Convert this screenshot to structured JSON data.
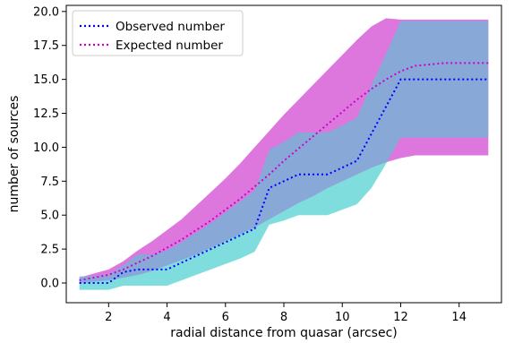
{
  "chart_data": {
    "type": "line",
    "xlabel": "radial distance from quasar (arcsec)",
    "ylabel": "number of sources",
    "xlim": [
      0.55,
      15.45
    ],
    "ylim": [
      -1.45,
      20.45
    ],
    "xticks": [
      2,
      4,
      6,
      8,
      10,
      12,
      14
    ],
    "yticks": [
      0.0,
      2.5,
      5.0,
      7.5,
      10.0,
      12.5,
      15.0,
      17.5,
      20.0
    ],
    "ytick_labels": [
      "0.0",
      "2.5",
      "5.0",
      "7.5",
      "10.0",
      "12.5",
      "15.0",
      "17.5",
      "20.0"
    ],
    "grid": false,
    "legend_position": "top-left",
    "colors": {
      "observed_line": "#0000ff",
      "expected_line": "#cc00cc",
      "observed_band": "#7fdddd",
      "expected_band": "#dd77dd",
      "overlap_band": "#88a8d8"
    },
    "series": [
      {
        "name": "Observed number",
        "style": "dotted",
        "x": [
          1.0,
          1.5,
          2.0,
          2.5,
          3.0,
          3.5,
          4.0,
          4.5,
          5.0,
          5.5,
          6.0,
          6.5,
          7.0,
          7.5,
          8.0,
          8.5,
          9.0,
          9.5,
          10.0,
          10.5,
          11.0,
          11.5,
          12.0,
          12.5,
          13.0,
          13.5,
          14.0,
          14.5,
          15.0
        ],
        "y": [
          0,
          0,
          0,
          0.8,
          1.0,
          1.0,
          1.0,
          1.5,
          2.0,
          2.5,
          3.0,
          3.5,
          4.0,
          7.0,
          7.5,
          8.0,
          8.0,
          8.0,
          8.5,
          9.0,
          11.0,
          13.0,
          15.0,
          15.0,
          15.0,
          15.0,
          15.0,
          15.0,
          15.0
        ],
        "band_lower": [
          -0.5,
          -0.5,
          -0.5,
          -0.2,
          -0.2,
          -0.2,
          -0.2,
          0.2,
          0.6,
          1.0,
          1.4,
          1.8,
          2.3,
          4.3,
          4.6,
          5.0,
          5.0,
          5.0,
          5.4,
          5.8,
          7.0,
          8.8,
          10.7,
          10.7,
          10.7,
          10.7,
          10.7,
          10.7,
          10.7
        ],
        "band_upper": [
          0.5,
          0.5,
          0.6,
          1.3,
          2.1,
          2.1,
          2.4,
          3.0,
          3.7,
          4.4,
          5.2,
          6.0,
          6.8,
          9.8,
          10.4,
          11.1,
          11.1,
          11.1,
          11.6,
          12.2,
          14.6,
          16.9,
          19.3,
          19.3,
          19.3,
          19.3,
          19.3,
          19.3,
          19.3
        ]
      },
      {
        "name": "Expected number",
        "style": "dotted",
        "x": [
          1.0,
          1.5,
          2.0,
          2.5,
          3.0,
          3.5,
          4.0,
          4.5,
          5.0,
          5.5,
          6.0,
          6.5,
          7.0,
          7.5,
          8.0,
          8.5,
          9.0,
          9.5,
          10.0,
          10.5,
          11.0,
          11.5,
          12.0,
          12.5,
          13.0,
          13.5,
          14.0,
          14.5,
          15.0
        ],
        "y": [
          0.2,
          0.4,
          0.6,
          1.0,
          1.5,
          2.0,
          2.6,
          3.2,
          3.9,
          4.6,
          5.4,
          6.2,
          7.1,
          8.0,
          9.0,
          9.9,
          10.8,
          11.7,
          12.6,
          13.5,
          14.3,
          15.0,
          15.6,
          16.0,
          16.1,
          16.2,
          16.2,
          16.2,
          16.2
        ],
        "band_lower": [
          0.0,
          0.1,
          0.2,
          0.4,
          0.6,
          0.9,
          1.3,
          1.7,
          2.1,
          2.6,
          3.1,
          3.6,
          4.1,
          4.7,
          5.3,
          5.9,
          6.4,
          7.0,
          7.5,
          8.0,
          8.5,
          8.9,
          9.2,
          9.4,
          9.4,
          9.4,
          9.4,
          9.4,
          9.4
        ],
        "band_upper": [
          0.4,
          0.7,
          1.0,
          1.6,
          2.4,
          3.1,
          3.9,
          4.7,
          5.7,
          6.7,
          7.7,
          8.8,
          10.0,
          11.2,
          12.4,
          13.5,
          14.6,
          15.7,
          16.8,
          17.9,
          18.9,
          19.5,
          19.4,
          19.4,
          19.4,
          19.4,
          19.4,
          19.4,
          19.4
        ]
      }
    ]
  }
}
